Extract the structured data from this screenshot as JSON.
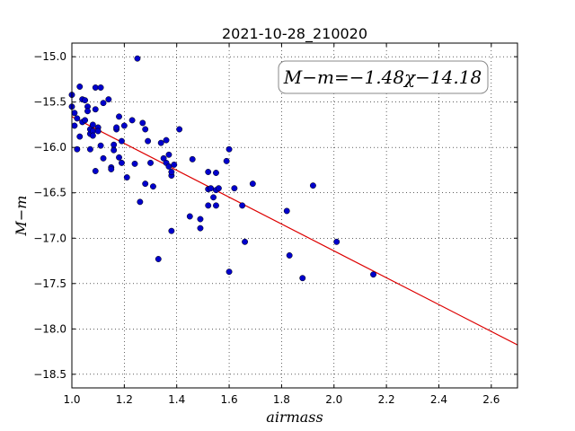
{
  "chart_data": {
    "type": "scatter",
    "title": "2021-10-28_210020",
    "xlabel": "airmass",
    "ylabel": "M−m",
    "xlim": [
      1.0,
      2.7
    ],
    "ylim": [
      -18.65,
      -14.85
    ],
    "x_ticks": [
      1.0,
      1.2,
      1.4,
      1.6,
      1.8,
      2.0,
      2.2,
      2.4,
      2.6
    ],
    "x_tick_labels": [
      "1.0",
      "1.2",
      "1.4",
      "1.6",
      "1.8",
      "2.0",
      "2.2",
      "2.4",
      "2.6"
    ],
    "y_ticks": [
      -15.0,
      -15.5,
      -16.0,
      -16.5,
      -17.0,
      -17.5,
      -18.0,
      -18.5
    ],
    "y_tick_labels": [
      "−15.0",
      "−15.5",
      "−16.0",
      "−16.5",
      "−17.0",
      "−17.5",
      "−18.0",
      "−18.5"
    ],
    "grid": true,
    "annotation": "M−m=−1.48χ−14.18",
    "marker_color": "#0000cc",
    "fit_color": "#dd0000",
    "fit": {
      "slope": -1.48,
      "intercept": -14.18
    },
    "points": [
      [
        1.0,
        -15.42
      ],
      [
        1.0,
        -15.55
      ],
      [
        1.01,
        -15.62
      ],
      [
        1.01,
        -15.76
      ],
      [
        1.02,
        -16.02
      ],
      [
        1.02,
        -15.68
      ],
      [
        1.03,
        -15.33
      ],
      [
        1.03,
        -15.88
      ],
      [
        1.04,
        -15.47
      ],
      [
        1.04,
        -15.72
      ],
      [
        1.05,
        -15.7
      ],
      [
        1.05,
        -15.48
      ],
      [
        1.06,
        -15.55
      ],
      [
        1.06,
        -15.6
      ],
      [
        1.07,
        -15.85
      ],
      [
        1.07,
        -16.02
      ],
      [
        1.07,
        -15.8
      ],
      [
        1.08,
        -15.75
      ],
      [
        1.08,
        -15.82
      ],
      [
        1.08,
        -15.87
      ],
      [
        1.09,
        -15.58
      ],
      [
        1.09,
        -15.34
      ],
      [
        1.09,
        -16.26
      ],
      [
        1.1,
        -15.78
      ],
      [
        1.1,
        -15.82
      ],
      [
        1.11,
        -15.98
      ],
      [
        1.11,
        -15.34
      ],
      [
        1.12,
        -15.51
      ],
      [
        1.12,
        -16.12
      ],
      [
        1.14,
        -15.47
      ],
      [
        1.15,
        -16.22
      ],
      [
        1.15,
        -16.24
      ],
      [
        1.16,
        -15.97
      ],
      [
        1.16,
        -16.03
      ],
      [
        1.17,
        -15.8
      ],
      [
        1.17,
        -15.78
      ],
      [
        1.18,
        -15.66
      ],
      [
        1.18,
        -16.11
      ],
      [
        1.19,
        -16.17
      ],
      [
        1.19,
        -15.93
      ],
      [
        1.2,
        -15.76
      ],
      [
        1.21,
        -16.33
      ],
      [
        1.23,
        -15.7
      ],
      [
        1.24,
        -16.18
      ],
      [
        1.25,
        -15.02
      ],
      [
        1.26,
        -16.6
      ],
      [
        1.27,
        -15.73
      ],
      [
        1.28,
        -15.8
      ],
      [
        1.28,
        -16.4
      ],
      [
        1.29,
        -15.93
      ],
      [
        1.3,
        -16.17
      ],
      [
        1.31,
        -16.43
      ],
      [
        1.33,
        -17.23
      ],
      [
        1.34,
        -15.95
      ],
      [
        1.35,
        -16.12
      ],
      [
        1.36,
        -15.92
      ],
      [
        1.36,
        -16.17
      ],
      [
        1.37,
        -16.08
      ],
      [
        1.37,
        -16.21
      ],
      [
        1.38,
        -16.31
      ],
      [
        1.38,
        -16.27
      ],
      [
        1.38,
        -16.92
      ],
      [
        1.39,
        -16.19
      ],
      [
        1.41,
        -15.8
      ],
      [
        1.45,
        -16.76
      ],
      [
        1.46,
        -16.13
      ],
      [
        1.49,
        -16.79
      ],
      [
        1.49,
        -16.89
      ],
      [
        1.52,
        -16.27
      ],
      [
        1.52,
        -16.46
      ],
      [
        1.52,
        -16.64
      ],
      [
        1.53,
        -16.45
      ],
      [
        1.54,
        -16.55
      ],
      [
        1.55,
        -16.28
      ],
      [
        1.55,
        -16.47
      ],
      [
        1.55,
        -16.64
      ],
      [
        1.56,
        -16.45
      ],
      [
        1.59,
        -16.15
      ],
      [
        1.6,
        -16.02
      ],
      [
        1.6,
        -17.37
      ],
      [
        1.62,
        -16.45
      ],
      [
        1.65,
        -16.64
      ],
      [
        1.66,
        -17.04
      ],
      [
        1.69,
        -16.4
      ],
      [
        1.82,
        -16.7
      ],
      [
        1.83,
        -17.19
      ],
      [
        1.88,
        -17.44
      ],
      [
        1.92,
        -16.42
      ],
      [
        2.01,
        -17.04
      ],
      [
        2.15,
        -17.4
      ]
    ]
  }
}
